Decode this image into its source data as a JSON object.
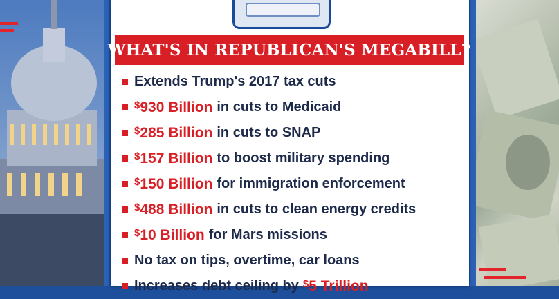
{
  "header": {
    "title": "WHAT'S IN REPUBLICAN'S MEGABILL?"
  },
  "items": [
    {
      "amount": "",
      "text": "Extends Trump's 2017 tax cuts"
    },
    {
      "amount": "930 Billion",
      "text": "in cuts to Medicaid"
    },
    {
      "amount": "285 Billion",
      "text": "in cuts to SNAP"
    },
    {
      "amount": "157 Billion",
      "text": "to boost military spending"
    },
    {
      "amount": "150 Billion",
      "text": "for immigration enforcement"
    },
    {
      "amount": "488 Billion",
      "text": "in cuts to clean energy credits"
    },
    {
      "amount": "10 Billion",
      "text": "for Mars missions"
    },
    {
      "amount": "",
      "text": "No tax on tips, overtime, car loans"
    },
    {
      "amount_after": "5 Trillion",
      "text": "Increases debt ceiling by"
    }
  ],
  "currency_symbol": "$",
  "colors": {
    "accent": "#d81f26",
    "background": "#1d4f9c",
    "text": "#1e2a4a"
  }
}
